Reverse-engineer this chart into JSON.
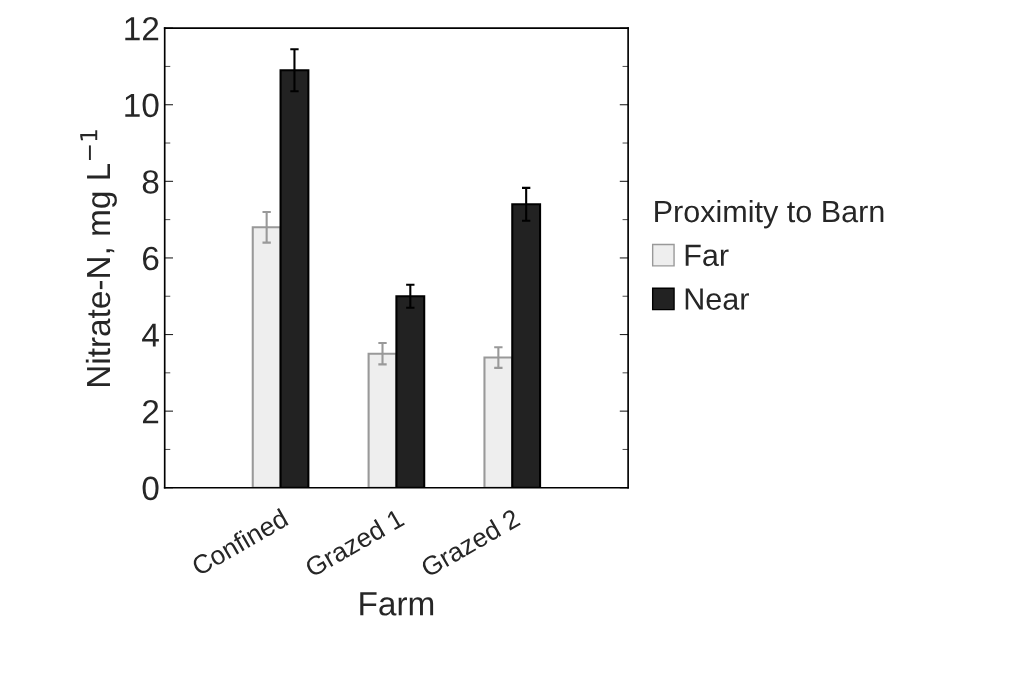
{
  "chart_data": {
    "type": "bar",
    "xlabel": "Farm",
    "ylabel": "Nitrate-N, mg L$^{−1}$",
    "legend_title": "Proximity to Barn",
    "categories": [
      "Confined",
      "Grazed 1",
      "Grazed 2"
    ],
    "series": [
      {
        "name": "Far",
        "color": "#eeeeee",
        "values": [
          6.8,
          3.5,
          3.4
        ],
        "errors": [
          0.4,
          0.28,
          0.27
        ]
      },
      {
        "name": "Near",
        "color": "#222222",
        "values": [
          10.9,
          5.0,
          7.4
        ],
        "errors": [
          0.55,
          0.3,
          0.43
        ]
      }
    ],
    "ylim": [
      0,
      12
    ],
    "yticks": [
      0,
      2,
      4,
      6,
      8,
      10,
      12
    ],
    "grid": false,
    "legend": "right"
  }
}
